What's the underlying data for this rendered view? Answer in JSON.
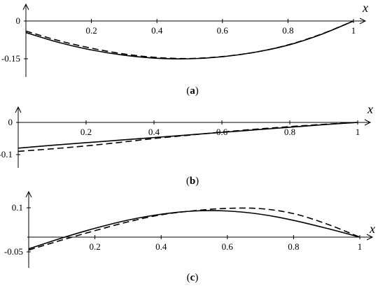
{
  "chart_data": [
    {
      "type": "line",
      "panel_label": "a",
      "xlabel": "x",
      "ylabel": "",
      "xlim": [
        0,
        1
      ],
      "ylim": [
        -0.2,
        0.07
      ],
      "x_ticks": [
        0.2,
        0.4,
        0.6,
        0.8,
        1
      ],
      "x_tick_labels": [
        "0.2",
        "0.4",
        "0.6",
        "0.8",
        "1"
      ],
      "y_ticks": [
        0,
        -0.15
      ],
      "y_tick_labels": [
        "0",
        "-0.15"
      ],
      "series": [
        {
          "style": "solid",
          "x": [
            0,
            0.1,
            0.2,
            0.3,
            0.4,
            0.5,
            0.6,
            0.7,
            0.8,
            0.9,
            1.0
          ],
          "y": [
            -0.046,
            -0.085,
            -0.115,
            -0.136,
            -0.148,
            -0.15,
            -0.142,
            -0.124,
            -0.096,
            -0.054,
            0.0
          ]
        },
        {
          "style": "dashed",
          "x": [
            0,
            0.1,
            0.2,
            0.3,
            0.4,
            0.5,
            0.6,
            0.7,
            0.8,
            0.9,
            1.0
          ],
          "y": [
            -0.04,
            -0.078,
            -0.108,
            -0.131,
            -0.145,
            -0.149,
            -0.141,
            -0.124,
            -0.095,
            -0.053,
            0.0
          ]
        }
      ]
    },
    {
      "type": "line",
      "panel_label": "b",
      "xlabel": "x",
      "ylabel": "",
      "xlim": [
        0,
        1
      ],
      "ylim": [
        -0.12,
        0.04
      ],
      "x_ticks": [
        0.2,
        0.4,
        0.6,
        0.8,
        1
      ],
      "x_tick_labels": [
        "0.2",
        "0.4",
        "0.6",
        "0.8",
        "1"
      ],
      "y_ticks": [
        0,
        -0.1
      ],
      "y_tick_labels": [
        "0",
        "-0.1"
      ],
      "series": [
        {
          "style": "solid",
          "x": [
            0,
            0.1,
            0.2,
            0.3,
            0.4,
            0.5,
            0.6,
            0.7,
            0.8,
            0.9,
            1.0
          ],
          "y": [
            -0.08,
            -0.071,
            -0.063,
            -0.055,
            -0.047,
            -0.039,
            -0.031,
            -0.023,
            -0.015,
            -0.007,
            0.0
          ]
        },
        {
          "style": "dashed",
          "x": [
            0,
            0.1,
            0.2,
            0.3,
            0.4,
            0.5,
            0.6,
            0.7,
            0.8,
            0.9,
            1.0
          ],
          "y": [
            -0.09,
            -0.082,
            -0.073,
            -0.062,
            -0.05,
            -0.04,
            -0.03,
            -0.021,
            -0.013,
            -0.006,
            0.0
          ]
        }
      ]
    },
    {
      "type": "line",
      "panel_label": "c",
      "xlabel": "x",
      "ylabel": "",
      "xlim": [
        0,
        1
      ],
      "ylim": [
        -0.06,
        0.12
      ],
      "x_ticks": [
        0.2,
        0.4,
        0.6,
        0.8,
        1
      ],
      "x_tick_labels": [
        "0.2",
        "0.4",
        "0.6",
        "0.8",
        "1"
      ],
      "y_ticks": [
        0.1,
        -0.05
      ],
      "y_tick_labels": [
        "0.1",
        "-0.05"
      ],
      "series": [
        {
          "style": "solid",
          "x": [
            0,
            0.1,
            0.2,
            0.3,
            0.4,
            0.5,
            0.6,
            0.7,
            0.8,
            0.9,
            1.0
          ],
          "y": [
            -0.04,
            -0.003,
            0.03,
            0.058,
            0.078,
            0.089,
            0.089,
            0.078,
            0.057,
            0.03,
            0.0
          ]
        },
        {
          "style": "dashed",
          "x": [
            0,
            0.1,
            0.2,
            0.3,
            0.4,
            0.5,
            0.6,
            0.7,
            0.8,
            0.9,
            1.0
          ],
          "y": [
            -0.044,
            -0.01,
            0.022,
            0.052,
            0.076,
            0.09,
            0.098,
            0.097,
            0.08,
            0.045,
            0.0
          ]
        }
      ]
    }
  ]
}
